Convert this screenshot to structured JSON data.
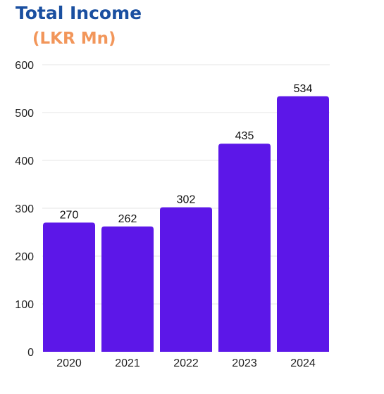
{
  "chart_data": {
    "type": "bar",
    "title": "Total Income",
    "subtitle": "(LKR Mn)",
    "categories": [
      "2020",
      "2021",
      "2022",
      "2023",
      "2024"
    ],
    "values": [
      270,
      262,
      302,
      435,
      534
    ],
    "ylim": [
      0,
      600
    ],
    "yticks": [
      0,
      100,
      200,
      300,
      400,
      500,
      600
    ],
    "grid": true,
    "bar_color": "#5c17e8",
    "title_color": "#1a4fa0",
    "subtitle_color": "#f2965a"
  }
}
